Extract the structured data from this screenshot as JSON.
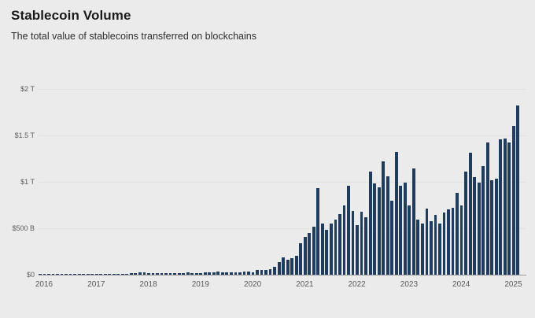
{
  "header": {
    "title": "Stablecoin Volume",
    "subtitle": "The total value of stablecoins transferred on blockchains"
  },
  "colors": {
    "background": "#ebebeb",
    "bar": "#1f3b5e",
    "gridline": "#e0e0e1",
    "axis_line": "#9b9b9b",
    "title_text": "#1a1a1a",
    "tick_text": "#5c5c5c"
  },
  "chart_data": {
    "type": "bar",
    "title": "Stablecoin Volume",
    "subtitle": "The total value of stablecoins transferred on blockchains",
    "unit": "USD billions transferred per month",
    "x_range": "Jan 2016 – Mar 2025, one bar per month",
    "grid": "horizontal",
    "legend": "none",
    "ylim_billions": [
      0,
      2000
    ],
    "y_ticks": [
      {
        "value": 0,
        "label": "$0"
      },
      {
        "value": 500,
        "label": "$500 B"
      },
      {
        "value": 1000,
        "label": "$1 T"
      },
      {
        "value": 1500,
        "label": "$1.5 T"
      },
      {
        "value": 2000,
        "label": "$2 T"
      }
    ],
    "x_tick_labels": [
      "2016",
      "2017",
      "2018",
      "2019",
      "2020",
      "2021",
      "2022",
      "2023",
      "2024",
      "2025"
    ],
    "series": [
      {
        "year": 2016,
        "monthly_values_billions": [
          2,
          2,
          2,
          3,
          3,
          3,
          3,
          4,
          4,
          4,
          5,
          5
        ]
      },
      {
        "year": 2017,
        "monthly_values_billions": [
          6,
          6,
          7,
          8,
          9,
          10,
          10,
          11,
          12,
          14,
          17,
          22
        ]
      },
      {
        "year": 2018,
        "monthly_values_billions": [
          24,
          19,
          17,
          15,
          16,
          17,
          18,
          19,
          18,
          20,
          24,
          20
        ]
      },
      {
        "year": 2019,
        "monthly_values_billions": [
          18,
          19,
          23,
          26,
          28,
          30,
          29,
          28,
          28,
          27,
          26,
          30
        ]
      },
      {
        "year": 2020,
        "monthly_values_billions": [
          30,
          27,
          52,
          48,
          55,
          62,
          85,
          135,
          190,
          160,
          175,
          200
        ]
      },
      {
        "year": 2021,
        "monthly_values_billions": [
          340,
          410,
          450,
          520,
          930,
          550,
          480,
          550,
          590,
          650,
          750,
          960
        ]
      },
      {
        "year": 2022,
        "monthly_values_billions": [
          690,
          530,
          680,
          620,
          1110,
          980,
          940,
          1220,
          1060,
          800,
          1320,
          960
        ]
      },
      {
        "year": 2023,
        "monthly_values_billions": [
          990,
          750,
          1140,
          590,
          550,
          710,
          580,
          640,
          550,
          670,
          700,
          720
        ]
      },
      {
        "year": 2024,
        "monthly_values_billions": [
          880,
          750,
          1110,
          1310,
          1050,
          990,
          1170,
          1420,
          1020,
          1030,
          1460,
          1470
        ]
      },
      {
        "year": 2025,
        "monthly_values_billions": [
          1420,
          1600,
          1820
        ]
      }
    ]
  }
}
